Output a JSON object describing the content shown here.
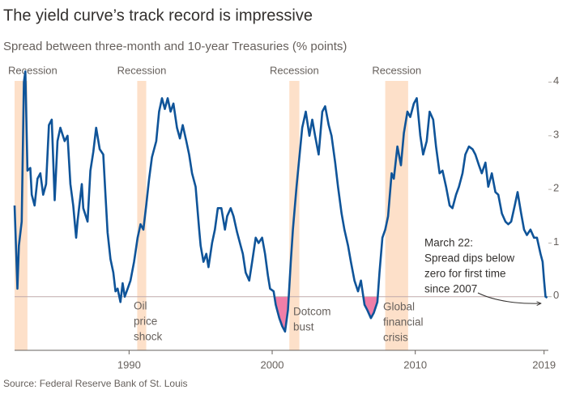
{
  "chart_data": {
    "type": "line",
    "title": "The yield curve’s track record is impressive",
    "subtitle": "Spread between three-month and 10-year Treasuries (% points)",
    "source": "Source: Federal Reserve Bank of St. Louis",
    "xlim": [
      1982,
      2019.3
    ],
    "xticks": [
      1990,
      2000,
      2010,
      2019
    ],
    "ylim": [
      -1,
      4.4
    ],
    "yticks": [
      0,
      1,
      2,
      3,
      4
    ],
    "grid": false,
    "inversion_color": "#f07fa8",
    "recession_color": "#fde0c9",
    "recessions": [
      {
        "start": 1981.5,
        "end": 1982.9,
        "label": "Recession"
      },
      {
        "start": 1990.57,
        "end": 1991.2,
        "label": "Recession"
      },
      {
        "start": 2001.2,
        "end": 2001.9,
        "label": "Recession"
      },
      {
        "start": 2007.9,
        "end": 2009.5,
        "label": "Recession"
      }
    ],
    "annotations": [
      {
        "lines": [
          "Oil",
          "price",
          "shock"
        ]
      },
      {
        "lines": [
          "Dotcom",
          "bust"
        ]
      },
      {
        "lines": [
          "Global",
          "financial",
          "crisis"
        ]
      },
      {
        "lines": [
          "March 22:",
          "Spread dips below",
          "zero for first time",
          "since 2007"
        ]
      }
    ],
    "series": [
      {
        "name": "Spread",
        "color": "#0f5499",
        "x": [
          1982.0,
          1982.2,
          1982.3,
          1982.5,
          1982.65,
          1982.75,
          1982.9,
          1983.1,
          1983.2,
          1983.4,
          1983.6,
          1983.8,
          1984.0,
          1984.2,
          1984.4,
          1984.6,
          1984.8,
          1985.0,
          1985.2,
          1985.5,
          1985.7,
          1985.9,
          1986.1,
          1986.3,
          1986.4,
          1986.7,
          1986.8,
          1987.1,
          1987.3,
          1987.5,
          1987.7,
          1987.95,
          1988.2,
          1988.35,
          1988.5,
          1988.7,
          1988.9,
          1989.05,
          1989.2,
          1989.4,
          1989.55,
          1989.7,
          1989.9,
          1990.1,
          1990.35,
          1990.6,
          1990.8,
          1991.0,
          1991.2,
          1991.4,
          1991.6,
          1991.9,
          1992.1,
          1992.3,
          1992.5,
          1992.7,
          1992.9,
          1993.1,
          1993.35,
          1993.55,
          1993.75,
          1994.0,
          1994.2,
          1994.4,
          1994.65,
          1994.9,
          1995.0,
          1995.2,
          1995.4,
          1995.55,
          1995.8,
          1996.0,
          1996.2,
          1996.45,
          1996.7,
          1996.85,
          1997.1,
          1997.3,
          1997.55,
          1997.8,
          1997.95,
          1998.15,
          1998.4,
          1998.6,
          1998.85,
          1999.05,
          1999.3,
          1999.5,
          1999.7,
          1999.85,
          2000.1,
          2000.25,
          2000.5,
          2000.7,
          2000.9,
          2001.1,
          2001.3,
          2001.45,
          2001.7,
          2001.9,
          2002.1,
          2002.35,
          2002.6,
          2002.8,
          2003.0,
          2003.25,
          2003.5,
          2003.7,
          2003.95,
          2004.15,
          2004.4,
          2004.6,
          2004.85,
          2005.05,
          2005.3,
          2005.5,
          2005.75,
          2006.0,
          2006.2,
          2006.45,
          2006.65,
          2006.9,
          2007.1,
          2007.35,
          2007.5,
          2007.7,
          2007.9,
          2008.1,
          2008.35,
          2008.5,
          2008.75,
          2009.0,
          2009.2,
          2009.45,
          2009.65,
          2009.9,
          2010.1,
          2010.35,
          2010.55,
          2010.8,
          2011.0,
          2011.25,
          2011.45,
          2011.7,
          2011.9,
          2012.15,
          2012.4,
          2012.6,
          2012.85,
          2013.05,
          2013.3,
          2013.5,
          2013.75,
          2014.0,
          2014.2,
          2014.45,
          2014.65,
          2014.9,
          2015.1,
          2015.35,
          2015.6,
          2015.8,
          2016.05,
          2016.3,
          2016.5,
          2016.7,
          2016.95,
          2017.15,
          2017.4,
          2017.6,
          2017.8,
          2018.05,
          2018.3,
          2018.5,
          2018.75,
          2018.9,
          2019.0,
          2019.1,
          2019.22
        ],
        "values": [
          1.7,
          0.15,
          0.95,
          1.4,
          4.0,
          4.2,
          2.35,
          2.4,
          1.9,
          1.7,
          2.2,
          2.3,
          1.9,
          2.1,
          3.2,
          3.3,
          1.8,
          2.9,
          3.15,
          2.9,
          3.0,
          2.1,
          1.7,
          1.1,
          1.4,
          2.1,
          1.65,
          1.4,
          2.35,
          2.7,
          3.15,
          2.75,
          2.65,
          1.9,
          1.2,
          0.7,
          0.45,
          0.1,
          0.15,
          -0.1,
          0.25,
          0.0,
          0.15,
          0.3,
          0.65,
          1.1,
          1.35,
          1.25,
          1.7,
          2.2,
          2.6,
          2.9,
          3.45,
          3.7,
          3.5,
          3.7,
          3.45,
          3.6,
          3.15,
          2.95,
          3.2,
          2.9,
          2.65,
          2.3,
          2.05,
          1.25,
          0.95,
          0.65,
          0.8,
          0.55,
          1.0,
          1.25,
          1.65,
          1.65,
          1.25,
          1.5,
          1.65,
          1.5,
          1.2,
          0.95,
          0.8,
          0.45,
          0.3,
          0.65,
          1.1,
          1.0,
          1.1,
          0.8,
          0.4,
          0.15,
          0.1,
          -0.15,
          -0.4,
          -0.55,
          -0.65,
          -0.25,
          0.65,
          1.25,
          2.05,
          2.6,
          3.15,
          3.45,
          3.0,
          3.3,
          3.0,
          2.65,
          3.45,
          3.55,
          3.2,
          3.0,
          2.5,
          2.05,
          1.55,
          1.25,
          0.95,
          0.65,
          0.3,
          0.1,
          0.3,
          -0.15,
          -0.25,
          -0.4,
          -0.3,
          -0.1,
          0.45,
          1.1,
          1.25,
          1.5,
          2.3,
          2.2,
          2.8,
          2.45,
          3.05,
          3.45,
          3.35,
          3.6,
          3.7,
          3.0,
          2.65,
          2.9,
          3.45,
          3.3,
          2.8,
          2.3,
          2.35,
          2.05,
          1.7,
          1.65,
          1.9,
          2.05,
          2.3,
          2.65,
          2.8,
          2.75,
          2.65,
          2.45,
          2.3,
          2.5,
          2.05,
          2.3,
          1.95,
          1.9,
          1.55,
          1.4,
          1.35,
          1.4,
          1.7,
          1.95,
          1.55,
          1.25,
          1.15,
          1.25,
          1.1,
          1.1,
          0.8,
          0.65,
          0.3,
          0.0,
          -0.02
        ]
      }
    ]
  }
}
